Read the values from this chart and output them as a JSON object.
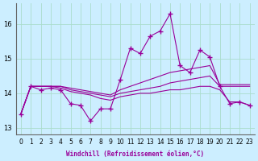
{
  "xlabel": "Windchill (Refroidissement éolien,°C)",
  "background_color": "#cceeff",
  "line_color": "#990099",
  "grid_color": "#aaddcc",
  "x": [
    0,
    1,
    2,
    3,
    4,
    5,
    6,
    7,
    8,
    9,
    10,
    11,
    12,
    13,
    14,
    15,
    16,
    17,
    18,
    19,
    20,
    21,
    22,
    23
  ],
  "line1": [
    13.4,
    14.2,
    14.1,
    14.15,
    14.1,
    13.7,
    13.65,
    13.2,
    13.55,
    13.55,
    14.4,
    15.3,
    15.15,
    15.65,
    15.8,
    16.3,
    14.8,
    14.6,
    15.25,
    15.05,
    14.2,
    13.7,
    13.75,
    13.65
  ],
  "line2": [
    13.4,
    14.2,
    14.2,
    14.2,
    14.2,
    14.15,
    14.1,
    14.05,
    14.0,
    13.95,
    14.1,
    14.2,
    14.3,
    14.4,
    14.5,
    14.6,
    14.65,
    14.7,
    14.75,
    14.8,
    14.25,
    14.25,
    14.25,
    14.25
  ],
  "line3": [
    13.4,
    14.2,
    14.2,
    14.2,
    14.2,
    14.1,
    14.05,
    14.0,
    13.95,
    13.9,
    14.0,
    14.05,
    14.1,
    14.15,
    14.2,
    14.3,
    14.35,
    14.4,
    14.45,
    14.5,
    14.2,
    14.2,
    14.2,
    14.2
  ],
  "line4": [
    13.4,
    14.2,
    14.2,
    14.2,
    14.15,
    14.05,
    14.0,
    13.95,
    13.85,
    13.8,
    13.9,
    13.95,
    14.0,
    14.0,
    14.05,
    14.1,
    14.1,
    14.15,
    14.2,
    14.2,
    14.1,
    13.75,
    13.75,
    13.65
  ],
  "yticks": [
    13,
    14,
    15,
    16
  ],
  "ylim": [
    12.8,
    16.6
  ],
  "xlim": [
    -0.5,
    23.5
  ]
}
